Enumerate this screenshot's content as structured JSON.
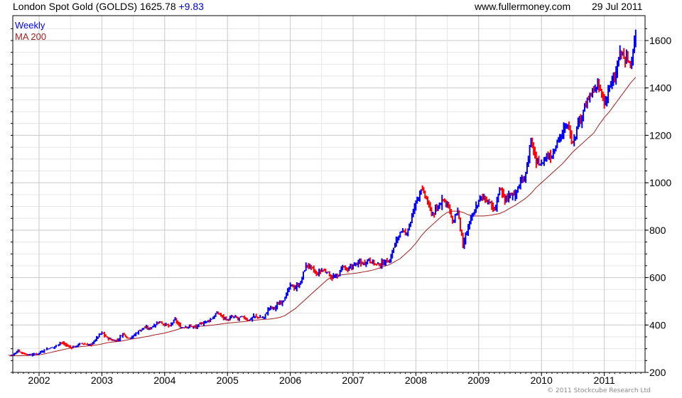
{
  "header": {
    "title": "London Spot Gold (GOLDS)",
    "price": "1625.78",
    "change": "+9.83",
    "site": "www.fullermoney.com",
    "date": "29 Jul 2011"
  },
  "copyright": "© 2011 Stockcube Research Ltd",
  "colors": {
    "up": "#0000ff",
    "down": "#ff0000",
    "ma": "#a02020",
    "change": "#0000cc",
    "grid_major": "#c8c8c8",
    "grid_minor": "#e6e6e6"
  },
  "chart_data": {
    "type": "bar",
    "title": "London Spot Gold (GOLDS) Weekly",
    "legend": [
      "Weekly",
      "MA 200"
    ],
    "legend_placement": "top-left",
    "x_start": "2001-08",
    "x_end": "2011-07",
    "x_tick_labels": [
      "2002",
      "2003",
      "2004",
      "2005",
      "2006",
      "2007",
      "2008",
      "2009",
      "2010",
      "2011"
    ],
    "y_tick_labels": [
      "200",
      "400",
      "600",
      "800",
      "1000",
      "1200",
      "1400",
      "1600"
    ],
    "ylim": [
      200,
      1680
    ],
    "grid": true,
    "monthly_close": [
      273,
      293,
      279,
      275,
      277,
      282,
      296,
      301,
      308,
      326,
      318,
      305,
      312,
      323,
      317,
      318,
      347,
      368,
      347,
      334,
      336,
      364,
      346,
      354,
      375,
      388,
      386,
      398,
      416,
      400,
      396,
      424,
      388,
      393,
      395,
      391,
      407,
      415,
      425,
      453,
      438,
      422,
      435,
      427,
      435,
      418,
      437,
      430,
      433,
      473,
      470,
      495,
      513,
      569,
      556,
      582,
      654,
      643,
      613,
      632,
      623,
      599,
      604,
      646,
      632,
      650,
      665,
      662,
      677,
      659,
      650,
      665,
      673,
      743,
      789,
      783,
      834,
      923,
      971,
      933,
      865,
      885,
      930,
      918,
      833,
      884,
      730,
      815,
      870,
      927,
      942,
      916,
      883,
      975,
      930,
      955,
      955,
      1000,
      1040,
      1180,
      1090,
      1080,
      1115,
      1113,
      1180,
      1210,
      1245,
      1170,
      1245,
      1307,
      1350,
      1385,
      1405,
      1330,
      1410,
      1430,
      1555,
      1530,
      1500,
      1626
    ],
    "ma200": [
      270,
      270,
      271,
      272,
      272,
      274,
      278,
      283,
      288,
      293,
      298,
      303,
      306,
      309,
      311,
      313,
      316,
      320,
      325,
      328,
      330,
      333,
      338,
      342,
      345,
      349,
      353,
      358,
      362,
      366,
      372,
      378,
      385,
      390,
      393,
      394,
      395,
      397,
      399,
      402,
      405,
      408,
      410,
      412,
      414,
      417,
      420,
      422,
      424,
      425,
      428,
      432,
      440,
      455,
      470,
      490,
      510,
      530,
      550,
      570,
      590,
      605,
      610,
      612,
      615,
      617,
      620,
      624,
      628,
      633,
      640,
      648,
      655,
      668,
      680,
      700,
      720,
      745,
      775,
      800,
      820,
      840,
      860,
      875,
      880,
      880,
      875,
      865,
      860,
      860,
      860,
      862,
      866,
      870,
      880,
      893,
      905,
      920,
      935,
      955,
      980,
      1000,
      1020,
      1040,
      1060,
      1080,
      1105,
      1130,
      1150,
      1170,
      1190,
      1210,
      1245,
      1275,
      1300,
      1330,
      1360,
      1390,
      1420,
      1445
    ]
  }
}
